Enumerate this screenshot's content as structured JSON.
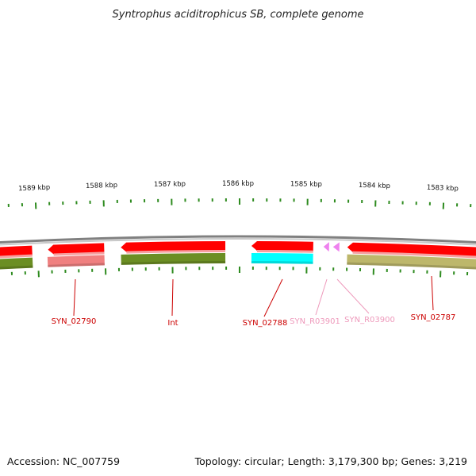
{
  "title": "Syntrophus aciditrophicus SB, complete genome",
  "footer": {
    "accession": "Accession: NC_007759",
    "summary": "Topology: circular; Length: 3,179,300 bp; Genes: 3,219"
  },
  "colors": {
    "tick": "#2e8b1f",
    "backbone": "#808080",
    "gene_red": "#ff0000",
    "gene_pink": "#f08080",
    "gene_olive": "#6b8e23",
    "gene_cyan": "#00ffff",
    "gene_khaki": "#bdb76b",
    "rna_pink": "#ee82ee",
    "label_red": "#cc0000",
    "label_pink": "#ee99bb"
  },
  "scale": {
    "unit": "kbp",
    "labels": [
      "1589 kbp",
      "1588 kbp",
      "1587 kbp",
      "1586 kbp",
      "1585 kbp",
      "1584 kbp",
      "1583 kbp"
    ]
  },
  "features": [
    {
      "name": "SYN_02790",
      "color": "gene_red",
      "type": "gene"
    },
    {
      "name": "Int",
      "color": "gene_red",
      "type": "gene"
    },
    {
      "name": "SYN_02788",
      "color": "gene_red",
      "type": "gene"
    },
    {
      "name": "SYN_R03901",
      "color": "rna_pink",
      "type": "rna"
    },
    {
      "name": "SYN_R03900",
      "color": "rna_pink",
      "type": "rna"
    },
    {
      "name": "SYN_02787",
      "color": "gene_red",
      "type": "gene"
    }
  ]
}
